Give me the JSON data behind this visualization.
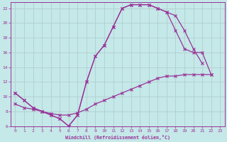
{
  "xlabel": "Windchill (Refroidissement éolien,°C)",
  "xlim_min": -0.5,
  "xlim_max": 23.5,
  "ylim_min": 6,
  "ylim_max": 22.8,
  "yticks": [
    6,
    8,
    10,
    12,
    14,
    16,
    18,
    20,
    22
  ],
  "xticks": [
    0,
    1,
    2,
    3,
    4,
    5,
    6,
    7,
    8,
    9,
    10,
    11,
    12,
    13,
    14,
    15,
    16,
    17,
    18,
    19,
    20,
    21,
    22,
    23
  ],
  "bg_color": "#c5e8e8",
  "line_color": "#993399",
  "grid_color": "#b0d0d0",
  "curves": [
    {
      "x": [
        0,
        1,
        2,
        3,
        4,
        5,
        6,
        7,
        8,
        9,
        10,
        11,
        12,
        13,
        14,
        15,
        16,
        17,
        18,
        19,
        20,
        21
      ],
      "y": [
        10.5,
        9.5,
        8.5,
        8.0,
        7.5,
        7.0,
        6.0,
        7.5,
        12.0,
        15.5,
        17.0,
        19.5,
        22.0,
        22.5,
        22.5,
        22.5,
        22.0,
        21.5,
        21.0,
        19.0,
        16.5,
        14.5
      ]
    },
    {
      "x": [
        0,
        1,
        2,
        3,
        4,
        5,
        6,
        7,
        8,
        9,
        10,
        11,
        12,
        13,
        14,
        15,
        16,
        17,
        18,
        19,
        20,
        21,
        22
      ],
      "y": [
        10.5,
        9.5,
        8.5,
        8.0,
        7.5,
        7.0,
        6.0,
        7.5,
        12.0,
        15.5,
        17.0,
        19.5,
        22.0,
        22.5,
        22.5,
        22.5,
        22.0,
        21.5,
        19.0,
        16.5,
        16.0,
        16.0,
        13.0
      ]
    },
    {
      "x": [
        0,
        1,
        2,
        3,
        4,
        5,
        6,
        7,
        8,
        9,
        10,
        11,
        12,
        13,
        14,
        15,
        16,
        17,
        18,
        19,
        20,
        21,
        22
      ],
      "y": [
        9.0,
        8.5,
        8.3,
        8.0,
        7.7,
        7.5,
        7.5,
        7.8,
        8.3,
        9.0,
        9.5,
        10.0,
        10.5,
        11.0,
        11.5,
        12.0,
        12.5,
        12.8,
        12.8,
        13.0,
        13.0,
        13.0,
        13.0
      ]
    }
  ]
}
